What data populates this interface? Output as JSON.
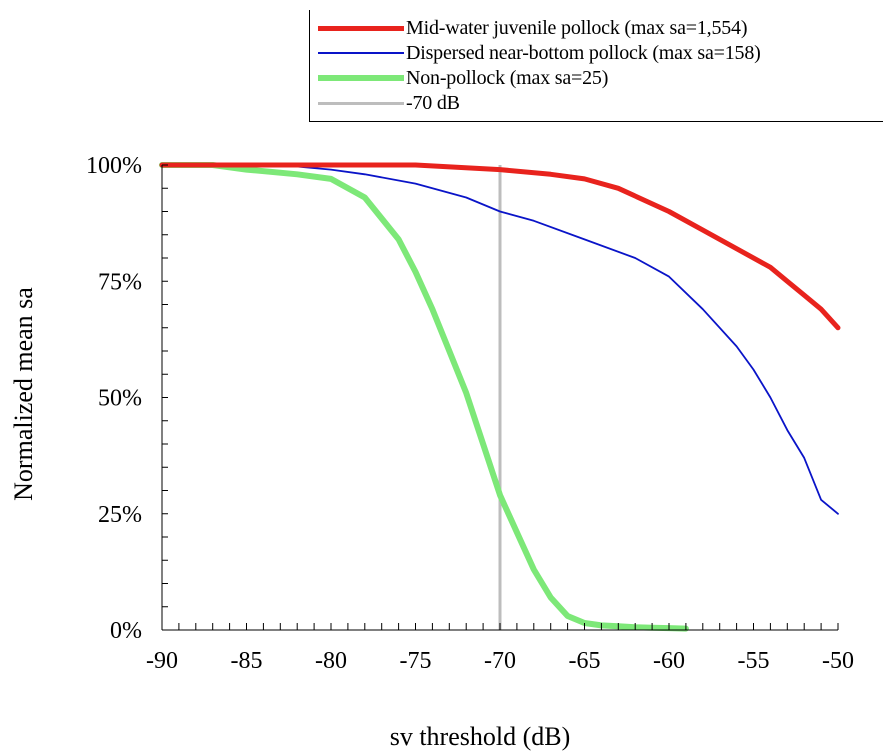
{
  "chart_data": {
    "type": "line",
    "title": "",
    "xlabel": "sv threshold (dB)",
    "ylabel": "Normalized mean sa",
    "xlim": [
      -90,
      -50
    ],
    "ylim": [
      0,
      100
    ],
    "x_ticks": [
      "-90",
      "-85",
      "-80",
      "-75",
      "-70",
      "-65",
      "-60",
      "-55",
      "-50"
    ],
    "y_ticks": [
      "0%",
      "25%",
      "50%",
      "75%",
      "100%"
    ],
    "grid": false,
    "legend_position": "top-right",
    "series": [
      {
        "name": "Mid-water juvenile pollock (max sa=1,554)",
        "color": "#e8231d",
        "x": [
          -90,
          -85,
          -80,
          -75,
          -70,
          -67,
          -65,
          -63,
          -60,
          -58,
          -56,
          -54,
          -53,
          -52,
          -51,
          -50
        ],
        "values": [
          100,
          100,
          100,
          100,
          99,
          98,
          97,
          95,
          90,
          86,
          82,
          78,
          75,
          72,
          69,
          65
        ]
      },
      {
        "name": "Dispersed near-bottom pollock (max sa=158)",
        "color": "#0a14c8",
        "x": [
          -90,
          -85,
          -83,
          -80,
          -78,
          -75,
          -72,
          -70,
          -68,
          -65,
          -62,
          -60,
          -58,
          -56,
          -55,
          -54,
          -53,
          -52,
          -51,
          -50
        ],
        "values": [
          100,
          100,
          100,
          99,
          98,
          96,
          93,
          90,
          88,
          84,
          80,
          76,
          69,
          61,
          56,
          50,
          43,
          37,
          28,
          25
        ]
      },
      {
        "name": "Non-pollock (max sa=25)",
        "color": "#7de878",
        "x": [
          -90,
          -87,
          -85,
          -82,
          -80,
          -78,
          -76,
          -75,
          -74,
          -73,
          -72,
          -71,
          -70,
          -69,
          -68,
          -67,
          -66,
          -65,
          -64,
          -63,
          -62,
          -61,
          -60,
          -59
        ],
        "values": [
          100,
          100,
          99,
          98,
          97,
          93,
          84,
          77,
          69,
          60,
          51,
          40,
          29,
          21,
          13,
          7,
          3,
          1.5,
          1,
          0.8,
          0.6,
          0.5,
          0.4,
          0.3
        ]
      },
      {
        "name": "-70 dB",
        "color": "#bdbdbd",
        "x": [
          -70,
          -70
        ],
        "values": [
          0,
          100
        ]
      }
    ]
  }
}
